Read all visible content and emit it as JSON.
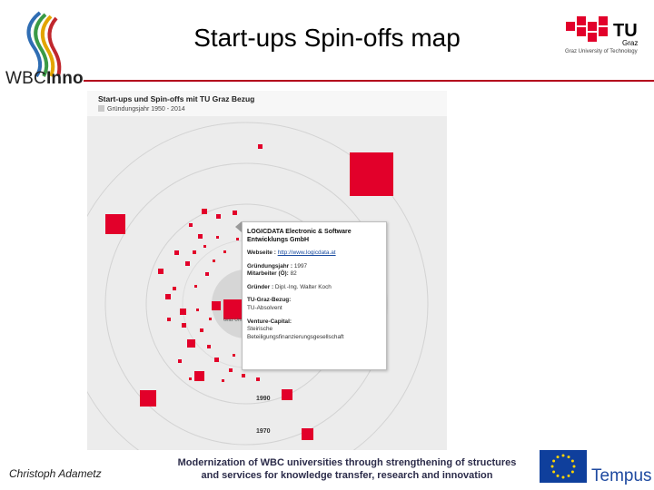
{
  "slide": {
    "title": "Start-ups Spin-offs map",
    "author": "Christoph Adametz",
    "footer_line1": "Modernization of WBC universities through strengthening of structures",
    "footer_line2": "and services for knowledge transfer, research and innovation"
  },
  "logos": {
    "wbc": {
      "prefix": "WBC",
      "suffix": "Inno"
    },
    "tu": {
      "main": "TU",
      "sub": "Graz",
      "tagline": "Graz University of Technology"
    },
    "tempus": "Tempus"
  },
  "colors": {
    "accent": "#b3001b",
    "marker": "#e2002a",
    "map_background": "#ececec"
  },
  "map": {
    "title": "Start-ups und Spin-offs mit TU Graz Bezug",
    "subtitle": "Gründungsjahr 1950 - 2014",
    "center_label": "Graz Uni",
    "year_labels": [
      "1990",
      "1970"
    ],
    "popup": {
      "company": "LOGICDATA Electronic & Software Entwicklungs GmbH",
      "website_label": "Webseite :",
      "website": "http://www.logicdata.at",
      "founded_label": "Gründungsjahr :",
      "founded": "1997",
      "employees_label": "Mitarbeiter (Ö):",
      "employees": "82",
      "founder_label": "Gründer :",
      "founder": "Dipl.-Ing. Walter Koch",
      "tu_relation_label": "TU-Graz-Bezug:",
      "tu_relation": "TU-Absolvent",
      "vc_label": "Venture-Capital:",
      "vc_line1": "Steirische",
      "vc_line2": "Beteiligungsfinanzierungsgesellschaft"
    }
  }
}
